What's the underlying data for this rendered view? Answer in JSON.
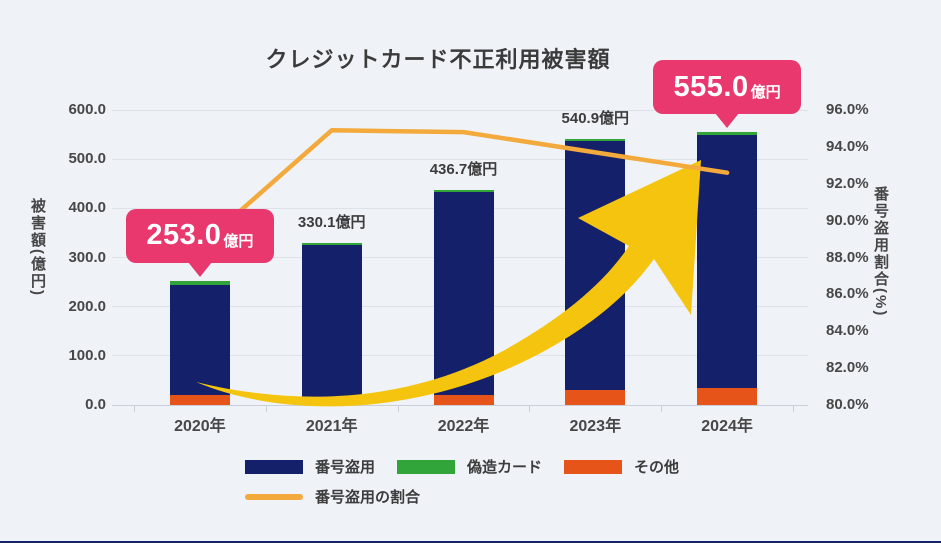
{
  "title": "クレジットカード不正利用被害額",
  "colors": {
    "background": "#EFF3F8",
    "navy": "#142069",
    "green": "#31A43A",
    "orange": "#E6541A",
    "amber": "#F3A93C",
    "arrow_yellow": "#F4C40E",
    "pink": "#E8386D",
    "white": "#FFFFFF",
    "text_title": "#3B3B3B",
    "text_axis": "#474747",
    "text_label": "#3C3C3C",
    "gridline": "#DDE2E9",
    "axis_line": "#C9D0DA"
  },
  "chart_data": {
    "type": "combo: stacked bar + line",
    "title": "クレジットカード不正利用被害額",
    "categories": [
      "2020年",
      "2021年",
      "2022年",
      "2023年",
      "2024年"
    ],
    "bar_unit": "億円",
    "totals": [
      253.0,
      330.1,
      436.7,
      540.9,
      555.0
    ],
    "total_labels": [
      "253.0億円",
      "330.1億円",
      "436.7億円",
      "540.9億円",
      "555.0億円"
    ],
    "series": [
      {
        "key": "number-theft",
        "name": "番号盗用",
        "type": "bar",
        "color": "navy",
        "values": [
          224.2,
          313.3,
          414.0,
          506.9,
          513.9
        ]
      },
      {
        "key": "counterfeit-card",
        "name": "偽造カード",
        "type": "bar",
        "color": "green",
        "values": [
          9.4,
          4.6,
          2.8,
          3.3,
          5.6
        ]
      },
      {
        "key": "other",
        "name": "その他",
        "type": "bar",
        "color": "orange",
        "values": [
          19.4,
          12.2,
          19.9,
          30.7,
          35.5
        ]
      },
      {
        "key": "number-theft-ratio",
        "name": "番号盗用の割合",
        "type": "line",
        "color": "amber",
        "values": [
          88.6,
          94.9,
          94.8,
          93.7,
          92.6
        ]
      }
    ],
    "stack_order_bottom_to_top": [
      "other",
      "number-theft",
      "counterfeit-card"
    ],
    "left_axis": {
      "title": "被害額(億円)",
      "min": 0,
      "max": 600,
      "step": 100,
      "tick_labels": [
        "600.0",
        "500.0",
        "400.0",
        "300.0",
        "200.0",
        "100.0",
        "0.0"
      ]
    },
    "right_axis": {
      "title": "番号盗用割合(%)",
      "min": 80,
      "max": 96,
      "step": 2,
      "tick_labels": [
        "96.0%",
        "94.0%",
        "92.0%",
        "90.0%",
        "88.0%",
        "86.0%",
        "84.0%",
        "82.0%",
        "80.0%"
      ]
    },
    "grid": "horizontal gridlines at left-axis steps",
    "legend": {
      "position": "bottom-left",
      "items": [
        {
          "series_key": "number-theft",
          "label": "番号盗用",
          "swatch": "rect",
          "color": "navy"
        },
        {
          "series_key": "counterfeit-card",
          "label": "偽造カード",
          "swatch": "rect",
          "color": "green"
        },
        {
          "series_key": "other",
          "label": "その他",
          "swatch": "rect",
          "color": "orange"
        },
        {
          "series_key": "number-theft-ratio",
          "label": "番号盗用の割合",
          "swatch": "line",
          "color": "amber"
        }
      ]
    },
    "annotations": {
      "callouts": [
        {
          "category_index": 0,
          "value_text": "253.0",
          "unit_text": "億円"
        },
        {
          "category_index": 4,
          "value_text": "555.0",
          "unit_text": "億円"
        }
      ],
      "plain_labels": [
        {
          "category_index": 1,
          "text": "330.1億円"
        },
        {
          "category_index": 2,
          "text": "436.7億円"
        },
        {
          "category_index": 3,
          "text": "540.9億円"
        }
      ]
    }
  }
}
